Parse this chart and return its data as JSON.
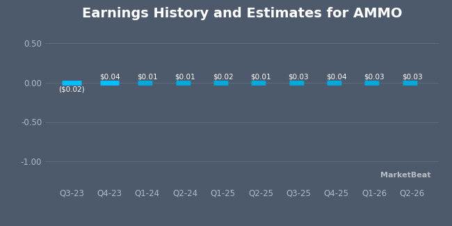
{
  "title": "Earnings History and Estimates for AMMO",
  "background_color": "#4d5a6b",
  "plot_bg_color": "#4d5a6b",
  "categories": [
    "Q3-23",
    "Q4-23",
    "Q1-24",
    "Q2-24",
    "Q1-25",
    "Q2-25",
    "Q3-25",
    "Q4-25",
    "Q1-26",
    "Q2-26"
  ],
  "actual_values": [
    -0.02,
    0.04,
    null,
    null,
    null,
    null,
    null,
    null,
    null,
    null
  ],
  "estimate_values": [
    null,
    null,
    0.01,
    0.01,
    0.02,
    0.01,
    0.03,
    0.04,
    0.03,
    0.03
  ],
  "bar_labels": [
    "($0.02)",
    "$0.04",
    "$0.01",
    "$0.01",
    "$0.02",
    "$0.01",
    "$0.03",
    "$0.04",
    "$0.03",
    "$0.03"
  ],
  "label_below": [
    true,
    false,
    false,
    false,
    false,
    false,
    false,
    false,
    false,
    false
  ],
  "actual_color": "#00bfff",
  "estimate_color": "#00aadd",
  "ylim": [
    -1.3,
    0.7
  ],
  "yticks": [
    -1.0,
    -0.5,
    0.0,
    0.5
  ],
  "ytick_labels": [
    "-1.00",
    "-0.50",
    "0.00",
    "0.50"
  ],
  "grid_color": "#5d6e80",
  "text_color": "#ffffff",
  "tick_color": "#aabbcc",
  "bar_width": 0.5,
  "line_thickness": 5.0,
  "title_fontsize": 14,
  "label_fontsize": 7.5,
  "tick_fontsize": 8.5,
  "watermark": "MarketBeat"
}
